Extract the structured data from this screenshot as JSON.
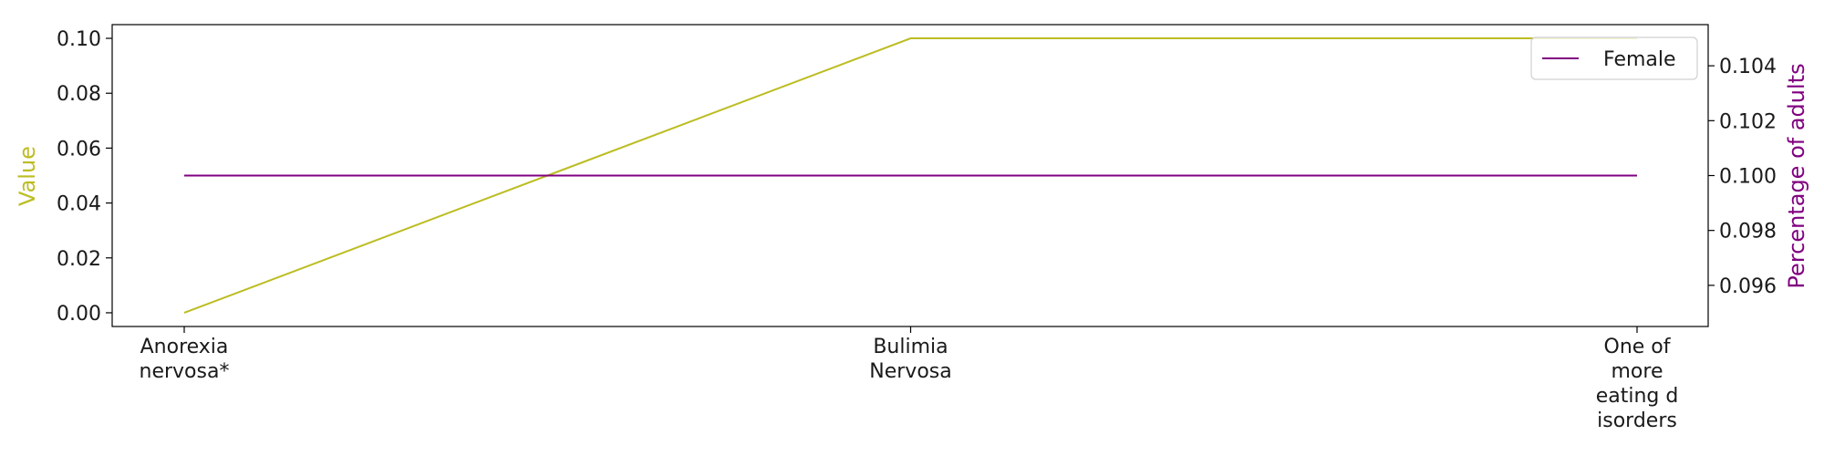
{
  "chart_data": {
    "type": "line",
    "categories": [
      "Anorexia nervosa*",
      "Bulimia Nervosa",
      "One of more eating disorders"
    ],
    "category_tick_lines": [
      [
        "Anorexia",
        "nervosa*"
      ],
      [
        "Bulimia",
        "Nervosa"
      ],
      [
        "One of",
        "more",
        "eating d",
        "isorders"
      ]
    ],
    "series": [
      {
        "name": "",
        "axis": "left",
        "color": "#bcbd22",
        "values": [
          0.0,
          0.1,
          0.1
        ]
      },
      {
        "name": "Female",
        "axis": "right",
        "color": "#800080",
        "values": [
          0.1,
          0.1,
          0.1
        ]
      }
    ],
    "left_axis": {
      "label": "Value",
      "label_color": "#bcbd22",
      "ylim": [
        -0.005,
        0.105
      ],
      "ticks": [
        0.0,
        0.02,
        0.04,
        0.06,
        0.08,
        0.1
      ],
      "tick_labels": [
        "0.00",
        "0.02",
        "0.04",
        "0.06",
        "0.08",
        "0.10"
      ]
    },
    "right_axis": {
      "label": "Percentage of adults",
      "label_color": "#800080",
      "ylim": [
        0.0945,
        0.1055
      ],
      "ticks": [
        0.096,
        0.098,
        0.1,
        0.102,
        0.104
      ],
      "tick_labels": [
        "0.096",
        "0.098",
        "0.100",
        "0.102",
        "0.104"
      ]
    },
    "legend": {
      "placement": "top-right",
      "entries": [
        "Female"
      ]
    },
    "grid": false
  }
}
